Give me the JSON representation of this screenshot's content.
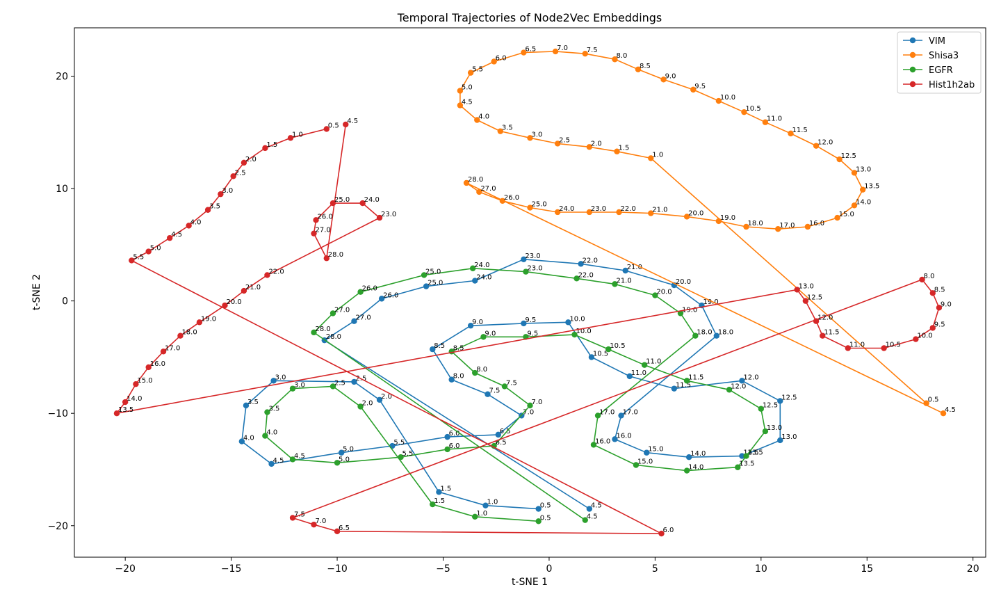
{
  "chart_data": {
    "type": "line",
    "title": "Temporal Trajectories of Node2Vec Embeddings",
    "xlabel": "t-SNE 1",
    "ylabel": "t-SNE 2",
    "xlim": [
      -22.4,
      20.6
    ],
    "ylim": [
      -22.8,
      24.3
    ],
    "xticks": [
      -20,
      -15,
      -10,
      -5,
      0,
      5,
      10,
      15,
      20
    ],
    "xtick_labels": [
      "−20",
      "−15",
      "−10",
      "−5",
      "0",
      "5",
      "10",
      "15",
      "20"
    ],
    "yticks": [
      -20,
      -10,
      0,
      10,
      20
    ],
    "ytick_labels": [
      "−20",
      "−10",
      "0",
      "10",
      "20"
    ],
    "grid": false,
    "legend": "top-right",
    "series": [
      {
        "name": "VIM",
        "color": "#1f77b4",
        "points": [
          {
            "t": "0.5",
            "x": -0.5,
            "y": -18.5
          },
          {
            "t": "1.0",
            "x": -3.0,
            "y": -18.2
          },
          {
            "t": "1.5",
            "x": -5.2,
            "y": -17.0
          },
          {
            "t": "2.0",
            "x": -8.0,
            "y": -8.8
          },
          {
            "t": "2.5",
            "x": -9.2,
            "y": -7.2
          },
          {
            "t": "3.0",
            "x": -13.0,
            "y": -7.1
          },
          {
            "t": "3.5",
            "x": -14.3,
            "y": -9.3
          },
          {
            "t": "4.0",
            "x": -14.5,
            "y": -12.5
          },
          {
            "t": "4.5",
            "x": -13.1,
            "y": -14.5
          },
          {
            "t": "5.0",
            "x": -9.8,
            "y": -13.5
          },
          {
            "t": "5.5",
            "x": -7.4,
            "y": -12.9
          },
          {
            "t": "6.0",
            "x": -4.8,
            "y": -12.1
          },
          {
            "t": "6.5",
            "x": -2.4,
            "y": -11.9
          },
          {
            "t": "7.0",
            "x": -1.3,
            "y": -10.2
          },
          {
            "t": "7.5",
            "x": -2.9,
            "y": -8.3
          },
          {
            "t": "8.0",
            "x": -4.6,
            "y": -7.0
          },
          {
            "t": "8.5",
            "x": -5.5,
            "y": -4.3
          },
          {
            "t": "9.0",
            "x": -3.7,
            "y": -2.2
          },
          {
            "t": "9.5",
            "x": -1.2,
            "y": -2.0
          },
          {
            "t": "10.0",
            "x": 0.9,
            "y": -1.9
          },
          {
            "t": "10.5",
            "x": 2.0,
            "y": -5.0
          },
          {
            "t": "11.0",
            "x": 3.8,
            "y": -6.7
          },
          {
            "t": "11.5",
            "x": 5.9,
            "y": -7.8
          },
          {
            "t": "12.0",
            "x": 9.1,
            "y": -7.1
          },
          {
            "t": "12.5",
            "x": 10.9,
            "y": -8.9
          },
          {
            "t": "13.0",
            "x": 10.9,
            "y": -12.4
          },
          {
            "t": "13.5",
            "x": 9.1,
            "y": -13.8
          },
          {
            "t": "14.0",
            "x": 6.6,
            "y": -13.9
          },
          {
            "t": "15.0",
            "x": 4.6,
            "y": -13.5
          },
          {
            "t": "16.0",
            "x": 3.1,
            "y": -12.3
          },
          {
            "t": "17.0",
            "x": 3.4,
            "y": -10.2
          },
          {
            "t": "18.0",
            "x": 7.9,
            "y": -3.1
          },
          {
            "t": "19.0",
            "x": 7.2,
            "y": -0.4
          },
          {
            "t": "20.0",
            "x": 5.9,
            "y": 1.4
          },
          {
            "t": "21.0",
            "x": 3.6,
            "y": 2.7
          },
          {
            "t": "22.0",
            "x": 1.5,
            "y": 3.3
          },
          {
            "t": "23.0",
            "x": -1.2,
            "y": 3.7
          },
          {
            "t": "24.0",
            "x": -3.5,
            "y": 1.8
          },
          {
            "t": "25.0",
            "x": -5.8,
            "y": 1.3
          },
          {
            "t": "26.0",
            "x": -7.9,
            "y": 0.2
          },
          {
            "t": "27.0",
            "x": -9.2,
            "y": -1.8
          },
          {
            "t": "28.0",
            "x": -10.6,
            "y": -3.5
          },
          {
            "t": "4.5",
            "x": 1.9,
            "y": -18.5
          }
        ]
      },
      {
        "name": "Shisa3",
        "color": "#ff7f0e",
        "points": [
          {
            "t": "0.5",
            "x": 17.8,
            "y": -9.1
          },
          {
            "t": "1.0",
            "x": 4.8,
            "y": 12.7
          },
          {
            "t": "1.5",
            "x": 3.2,
            "y": 13.3
          },
          {
            "t": "2.0",
            "x": 1.9,
            "y": 13.7
          },
          {
            "t": "2.5",
            "x": 0.4,
            "y": 14.0
          },
          {
            "t": "3.0",
            "x": -0.9,
            "y": 14.5
          },
          {
            "t": "3.5",
            "x": -2.3,
            "y": 15.1
          },
          {
            "t": "4.0",
            "x": -3.4,
            "y": 16.1
          },
          {
            "t": "4.5",
            "x": -4.2,
            "y": 17.4
          },
          {
            "t": "5.0",
            "x": -4.2,
            "y": 18.7
          },
          {
            "t": "5.5",
            "x": -3.7,
            "y": 20.3
          },
          {
            "t": "6.0",
            "x": -2.6,
            "y": 21.3
          },
          {
            "t": "6.5",
            "x": -1.2,
            "y": 22.1
          },
          {
            "t": "7.0",
            "x": 0.3,
            "y": 22.2
          },
          {
            "t": "7.5",
            "x": 1.7,
            "y": 22.0
          },
          {
            "t": "8.0",
            "x": 3.1,
            "y": 21.5
          },
          {
            "t": "8.5",
            "x": 4.2,
            "y": 20.6
          },
          {
            "t": "9.0",
            "x": 5.4,
            "y": 19.7
          },
          {
            "t": "9.5",
            "x": 6.8,
            "y": 18.8
          },
          {
            "t": "10.0",
            "x": 8.0,
            "y": 17.8
          },
          {
            "t": "10.5",
            "x": 9.2,
            "y": 16.8
          },
          {
            "t": "11.0",
            "x": 10.2,
            "y": 15.9
          },
          {
            "t": "11.5",
            "x": 11.4,
            "y": 14.9
          },
          {
            "t": "12.0",
            "x": 12.6,
            "y": 13.8
          },
          {
            "t": "12.5",
            "x": 13.7,
            "y": 12.6
          },
          {
            "t": "13.0",
            "x": 14.4,
            "y": 11.4
          },
          {
            "t": "13.5",
            "x": 14.8,
            "y": 9.9
          },
          {
            "t": "14.0",
            "x": 14.4,
            "y": 8.5
          },
          {
            "t": "15.0",
            "x": 13.6,
            "y": 7.4
          },
          {
            "t": "16.0",
            "x": 12.2,
            "y": 6.6
          },
          {
            "t": "17.0",
            "x": 10.8,
            "y": 6.4
          },
          {
            "t": "18.0",
            "x": 9.3,
            "y": 6.6
          },
          {
            "t": "19.0",
            "x": 8.0,
            "y": 7.1
          },
          {
            "t": "20.0",
            "x": 6.5,
            "y": 7.5
          },
          {
            "t": "21.0",
            "x": 4.8,
            "y": 7.8
          },
          {
            "t": "22.0",
            "x": 3.3,
            "y": 7.9
          },
          {
            "t": "23.0",
            "x": 1.9,
            "y": 7.9
          },
          {
            "t": "24.0",
            "x": 0.4,
            "y": 7.9
          },
          {
            "t": "25.0",
            "x": -0.9,
            "y": 8.3
          },
          {
            "t": "26.0",
            "x": -2.2,
            "y": 8.9
          },
          {
            "t": "27.0",
            "x": -3.3,
            "y": 9.7
          },
          {
            "t": "28.0",
            "x": -3.9,
            "y": 10.5
          },
          {
            "t": "4.5",
            "x": 18.6,
            "y": -10.0
          }
        ]
      },
      {
        "name": "EGFR",
        "color": "#2ca02c",
        "points": [
          {
            "t": "0.5",
            "x": -0.5,
            "y": -19.6
          },
          {
            "t": "1.0",
            "x": -3.5,
            "y": -19.2
          },
          {
            "t": "1.5",
            "x": -5.5,
            "y": -18.1
          },
          {
            "t": "2.0",
            "x": -8.9,
            "y": -9.4
          },
          {
            "t": "2.5",
            "x": -10.2,
            "y": -7.6
          },
          {
            "t": "3.0",
            "x": -12.1,
            "y": -7.8
          },
          {
            "t": "3.5",
            "x": -13.3,
            "y": -9.9
          },
          {
            "t": "4.0",
            "x": -13.4,
            "y": -12.0
          },
          {
            "t": "4.5",
            "x": -12.1,
            "y": -14.1
          },
          {
            "t": "5.0",
            "x": -10.0,
            "y": -14.4
          },
          {
            "t": "5.5",
            "x": -7.0,
            "y": -13.9
          },
          {
            "t": "6.0",
            "x": -4.8,
            "y": -13.2
          },
          {
            "t": "6.5",
            "x": -2.6,
            "y": -12.9
          },
          {
            "t": "7.0",
            "x": -0.9,
            "y": -9.3
          },
          {
            "t": "7.5",
            "x": -2.1,
            "y": -7.6
          },
          {
            "t": "8.0",
            "x": -3.5,
            "y": -6.4
          },
          {
            "t": "8.5",
            "x": -4.6,
            "y": -4.5
          },
          {
            "t": "9.0",
            "x": -3.1,
            "y": -3.2
          },
          {
            "t": "9.5",
            "x": -1.1,
            "y": -3.2
          },
          {
            "t": "10.0",
            "x": 1.2,
            "y": -3.0
          },
          {
            "t": "10.5",
            "x": 2.8,
            "y": -4.3
          },
          {
            "t": "11.0",
            "x": 4.5,
            "y": -5.7
          },
          {
            "t": "11.5",
            "x": 6.5,
            "y": -7.1
          },
          {
            "t": "12.0",
            "x": 8.5,
            "y": -7.9
          },
          {
            "t": "12.5",
            "x": 10.0,
            "y": -9.6
          },
          {
            "t": "13.0",
            "x": 10.2,
            "y": -11.6
          },
          {
            "t": "13.5",
            "x": 9.3,
            "y": -13.8
          },
          {
            "t": "13.5",
            "x": 8.9,
            "y": -14.8
          },
          {
            "t": "14.0",
            "x": 6.5,
            "y": -15.1
          },
          {
            "t": "15.0",
            "x": 4.1,
            "y": -14.6
          },
          {
            "t": "16.0",
            "x": 2.1,
            "y": -12.8
          },
          {
            "t": "17.0",
            "x": 2.3,
            "y": -10.2
          },
          {
            "t": "18.0",
            "x": 6.9,
            "y": -3.1
          },
          {
            "t": "19.0",
            "x": 6.2,
            "y": -1.1
          },
          {
            "t": "20.0",
            "x": 5.0,
            "y": 0.5
          },
          {
            "t": "21.0",
            "x": 3.1,
            "y": 1.5
          },
          {
            "t": "22.0",
            "x": 1.3,
            "y": 2.0
          },
          {
            "t": "23.0",
            "x": -1.1,
            "y": 2.6
          },
          {
            "t": "24.0",
            "x": -3.6,
            "y": 2.9
          },
          {
            "t": "25.0",
            "x": -5.9,
            "y": 2.3
          },
          {
            "t": "26.0",
            "x": -8.9,
            "y": 0.8
          },
          {
            "t": "27.0",
            "x": -10.2,
            "y": -1.1
          },
          {
            "t": "28.0",
            "x": -11.1,
            "y": -2.8
          },
          {
            "t": "4.5",
            "x": 1.7,
            "y": -19.5
          }
        ]
      },
      {
        "name": "Hist1h2ab",
        "color": "#d62728",
        "points": [
          {
            "t": "0.5",
            "x": -10.5,
            "y": 15.3
          },
          {
            "t": "1.0",
            "x": -12.2,
            "y": 14.5
          },
          {
            "t": "1.5",
            "x": -13.4,
            "y": 13.6
          },
          {
            "t": "2.0",
            "x": -14.4,
            "y": 12.3
          },
          {
            "t": "2.5",
            "x": -14.9,
            "y": 11.1
          },
          {
            "t": "3.0",
            "x": -15.5,
            "y": 9.5
          },
          {
            "t": "3.5",
            "x": -16.1,
            "y": 8.1
          },
          {
            "t": "4.0",
            "x": -17.0,
            "y": 6.7
          },
          {
            "t": "4.5",
            "x": -17.9,
            "y": 5.6
          },
          {
            "t": "5.0",
            "x": -18.9,
            "y": 4.4
          },
          {
            "t": "5.5",
            "x": -19.7,
            "y": 3.6
          },
          {
            "t": "6.0",
            "x": 5.3,
            "y": -20.7
          },
          {
            "t": "6.5",
            "x": -10.0,
            "y": -20.5
          },
          {
            "t": "7.0",
            "x": -11.1,
            "y": -19.9
          },
          {
            "t": "7.5",
            "x": -12.1,
            "y": -19.3
          },
          {
            "t": "8.0",
            "x": 17.6,
            "y": 1.9
          },
          {
            "t": "8.5",
            "x": 18.1,
            "y": 0.7
          },
          {
            "t": "9.0",
            "x": 18.4,
            "y": -0.6
          },
          {
            "t": "9.5",
            "x": 18.1,
            "y": -2.4
          },
          {
            "t": "10.0",
            "x": 17.3,
            "y": -3.4
          },
          {
            "t": "10.5",
            "x": 15.8,
            "y": -4.2
          },
          {
            "t": "11.0",
            "x": 14.1,
            "y": -4.2
          },
          {
            "t": "11.5",
            "x": 12.9,
            "y": -3.1
          },
          {
            "t": "12.0",
            "x": 12.6,
            "y": -1.8
          },
          {
            "t": "12.5",
            "x": 12.1,
            "y": 0.0
          },
          {
            "t": "13.0",
            "x": 11.7,
            "y": 1.0
          },
          {
            "t": "13.5",
            "x": -20.4,
            "y": -10.0
          },
          {
            "t": "14.0",
            "x": -20.0,
            "y": -9.0
          },
          {
            "t": "15.0",
            "x": -19.5,
            "y": -7.4
          },
          {
            "t": "16.0",
            "x": -18.9,
            "y": -5.9
          },
          {
            "t": "17.0",
            "x": -18.2,
            "y": -4.5
          },
          {
            "t": "18.0",
            "x": -17.4,
            "y": -3.1
          },
          {
            "t": "19.0",
            "x": -16.5,
            "y": -1.9
          },
          {
            "t": "20.0",
            "x": -15.3,
            "y": -0.4
          },
          {
            "t": "21.0",
            "x": -14.4,
            "y": 0.9
          },
          {
            "t": "22.0",
            "x": -13.3,
            "y": 2.3
          },
          {
            "t": "23.0",
            "x": -8.0,
            "y": 7.4
          },
          {
            "t": "24.0",
            "x": -8.8,
            "y": 8.7
          },
          {
            "t": "25.0",
            "x": -10.2,
            "y": 8.7
          },
          {
            "t": "26.0",
            "x": -11.0,
            "y": 7.2
          },
          {
            "t": "27.0",
            "x": -11.1,
            "y": 6.0
          },
          {
            "t": "28.0",
            "x": -10.5,
            "y": 3.8
          },
          {
            "t": "4.5",
            "x": -9.6,
            "y": 15.7
          }
        ]
      }
    ]
  }
}
